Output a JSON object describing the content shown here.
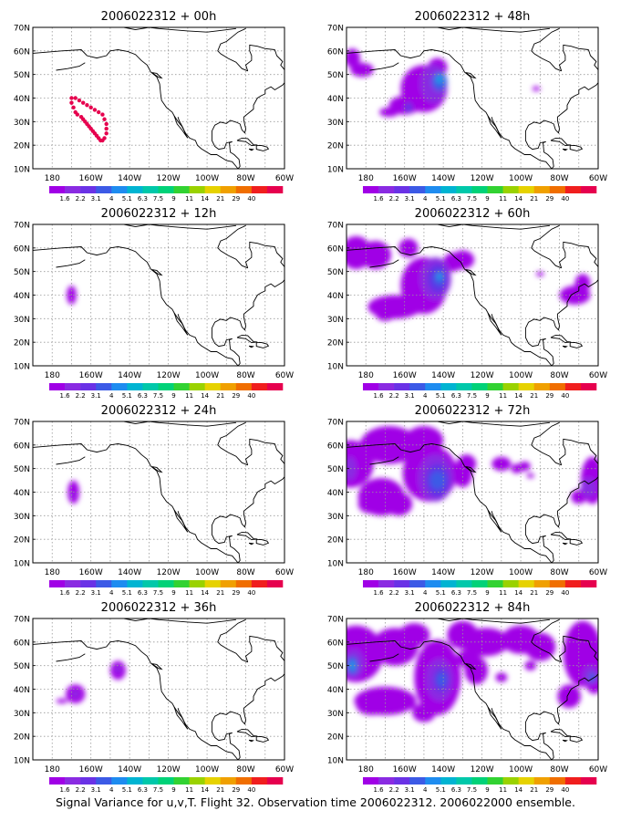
{
  "panels": [
    {
      "title": "2006022312 + 00h",
      "forecast_hour": 0
    },
    {
      "title": "2006022312 + 48h",
      "forecast_hour": 48
    },
    {
      "title": "2006022312 + 12h",
      "forecast_hour": 12
    },
    {
      "title": "2006022312 + 60h",
      "forecast_hour": 60
    },
    {
      "title": "2006022312 + 24h",
      "forecast_hour": 24
    },
    {
      "title": "2006022312 + 72h",
      "forecast_hour": 72
    },
    {
      "title": "2006022312 + 36h",
      "forecast_hour": 36
    },
    {
      "title": "2006022312 + 84h",
      "forecast_hour": 84
    }
  ],
  "map": {
    "lon_labels": [
      "180",
      "160W",
      "140W",
      "120W",
      "100W",
      "80W",
      "60W"
    ],
    "lat_labels": [
      "10N",
      "20N",
      "30N",
      "40N",
      "50N",
      "60N",
      "70N"
    ],
    "lon_range": [
      -190,
      -60
    ],
    "lat_range": [
      10,
      70
    ],
    "grid": "dotted"
  },
  "colorbar": {
    "labels": [
      "1.6",
      "2.2",
      "3.1",
      "4",
      "5.1",
      "6.3",
      "7.5",
      "9",
      "11",
      "14",
      "21",
      "29",
      "40"
    ],
    "colors": [
      "#a000e6",
      "#8a2be2",
      "#6a32e6",
      "#3c5ae6",
      "#1e8cf0",
      "#00b4d2",
      "#00c8aa",
      "#00d278",
      "#32d232",
      "#9ad200",
      "#e6d200",
      "#f0a000",
      "#f06e00",
      "#f01e1e",
      "#e6004e"
    ]
  },
  "signal_legend": {
    "levels": [
      {
        "min": 1.6,
        "color": "#a000e6"
      },
      {
        "min": 2.2,
        "color": "#8a2be2"
      },
      {
        "min": 3.1,
        "color": "#6a32e6"
      },
      {
        "min": 4,
        "color": "#3c5ae6"
      },
      {
        "min": 5.1,
        "color": "#1e8cf0"
      }
    ]
  },
  "footer": "Signal Variance for u,v,T. Flight 32. Observation time 2006022312. 2006022000 ensemble.",
  "colors": {
    "track_dot": "#e6004e",
    "coast": "#000000",
    "grid": "#999999"
  }
}
